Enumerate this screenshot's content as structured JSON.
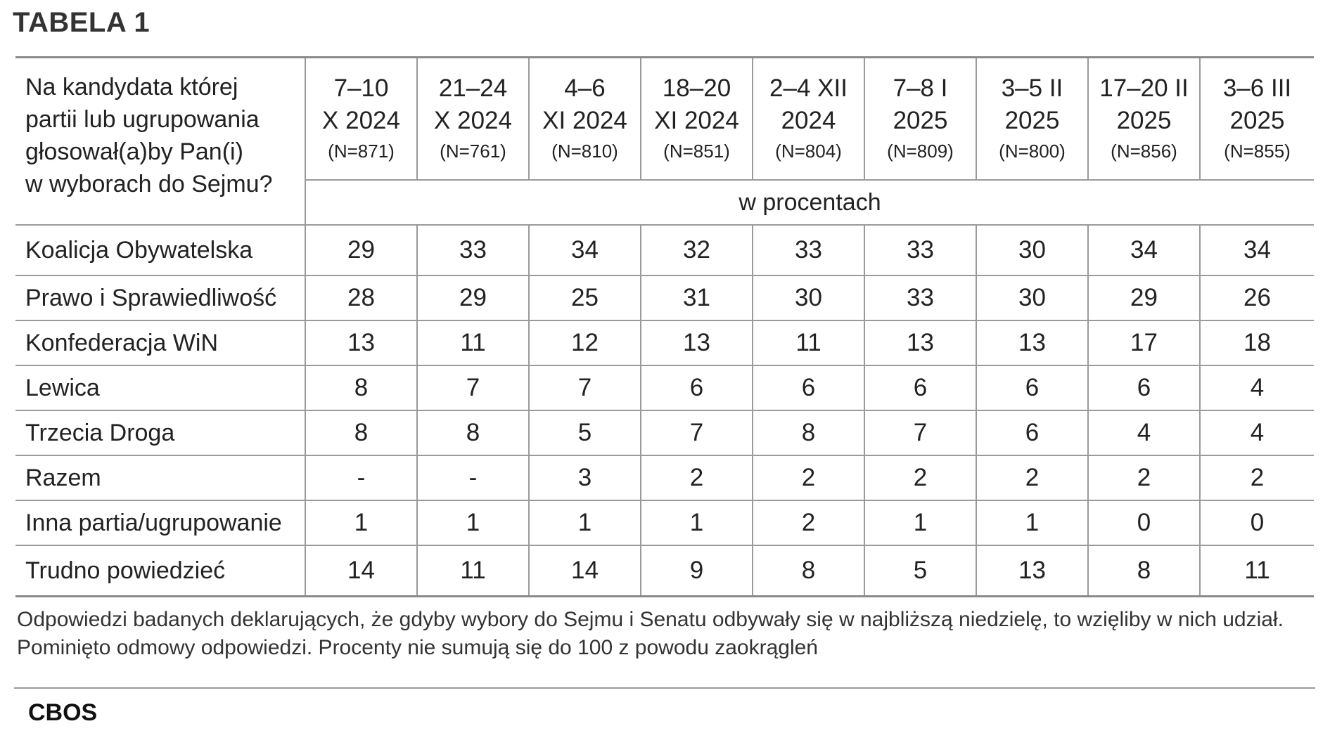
{
  "title": "TABELA 1",
  "table": {
    "question": "Na kandydata której\npartii lub ugrupowania\ngłosował(a)by Pan(i)\nw wyborach do Sejmu?",
    "unit": "w procentach",
    "columns": [
      {
        "date_line1": "7–10",
        "date_line2": "X 2024",
        "n": "(N=871)"
      },
      {
        "date_line1": "21–24",
        "date_line2": "X 2024",
        "n": "(N=761)"
      },
      {
        "date_line1": "4–6",
        "date_line2": "XI 2024",
        "n": "(N=810)"
      },
      {
        "date_line1": "18–20",
        "date_line2": "XI 2024",
        "n": "(N=851)"
      },
      {
        "date_line1": "2–4 XII",
        "date_line2": "2024",
        "n": "(N=804)"
      },
      {
        "date_line1": "7–8 I",
        "date_line2": "2025",
        "n": "(N=809)"
      },
      {
        "date_line1": "3–5 II",
        "date_line2": "2025",
        "n": "(N=800)"
      },
      {
        "date_line1": "17–20 II",
        "date_line2": "2025",
        "n": "(N=856)"
      },
      {
        "date_line1": "3–6 III",
        "date_line2": "2025",
        "n": "(N=855)"
      }
    ],
    "rows": [
      {
        "label": "Koalicja Obywatelska",
        "values": [
          "29",
          "33",
          "34",
          "32",
          "33",
          "33",
          "30",
          "34",
          "34"
        ]
      },
      {
        "label": "Prawo i Sprawiedliwość",
        "values": [
          "28",
          "29",
          "25",
          "31",
          "30",
          "33",
          "30",
          "29",
          "26"
        ]
      },
      {
        "label": "Konfederacja WiN",
        "values": [
          "13",
          "11",
          "12",
          "13",
          "11",
          "13",
          "13",
          "17",
          "18"
        ]
      },
      {
        "label": "Lewica",
        "values": [
          "8",
          "7",
          "7",
          "6",
          "6",
          "6",
          "6",
          "6",
          "4"
        ]
      },
      {
        "label": "Trzecia Droga",
        "values": [
          "8",
          "8",
          "5",
          "7",
          "8",
          "7",
          "6",
          "4",
          "4"
        ]
      },
      {
        "label": "Razem",
        "values": [
          "-",
          "-",
          "3",
          "2",
          "2",
          "2",
          "2",
          "2",
          "2"
        ]
      },
      {
        "label": "Inna partia/ugrupowanie",
        "values": [
          "1",
          "1",
          "1",
          "1",
          "2",
          "1",
          "1",
          "0",
          "0"
        ]
      },
      {
        "label": "Trudno powiedzieć",
        "values": [
          "14",
          "11",
          "14",
          "9",
          "8",
          "5",
          "13",
          "8",
          "11"
        ]
      }
    ]
  },
  "footnote": "Odpowiedzi badanych deklarujących, że gdyby wybory do Sejmu i Senatu odbywały się w najbliższą niedzielę, to wzięliby w nich udział. Pominięto odmowy odpowiedzi. Procenty nie sumują się do 100 z powodu zaokrągleń",
  "source": "CBOS"
}
